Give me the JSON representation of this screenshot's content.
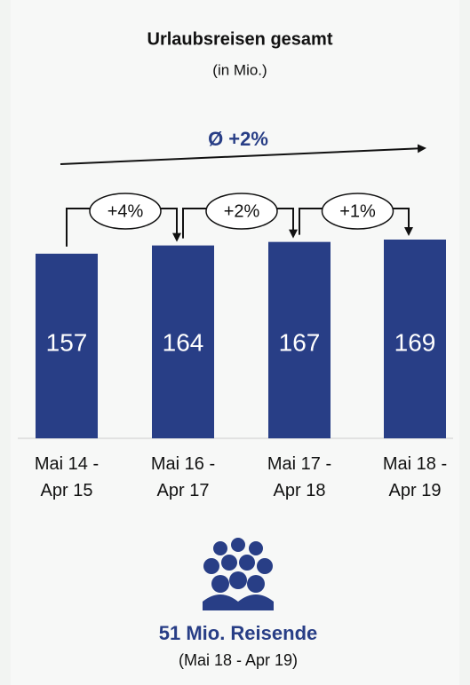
{
  "chart_data": {
    "type": "bar",
    "title": "Urlaubsreisen gesamt",
    "subtitle": "(in Mio.)",
    "categories": [
      "Mai 14 - Apr 15",
      "Mai 16 - Apr 17",
      "Mai 17 - Apr 18",
      "Mai 18 - Apr 19"
    ],
    "values": [
      157,
      164,
      167,
      169
    ],
    "color": "#283e86",
    "annotations": {
      "average_growth": "Ø +2%",
      "growth": [
        "+4%",
        "+2%",
        "+1%"
      ]
    },
    "footer": {
      "headline": "51 Mio. Reisende",
      "period": "(Mai 18 - Apr 19)"
    }
  }
}
